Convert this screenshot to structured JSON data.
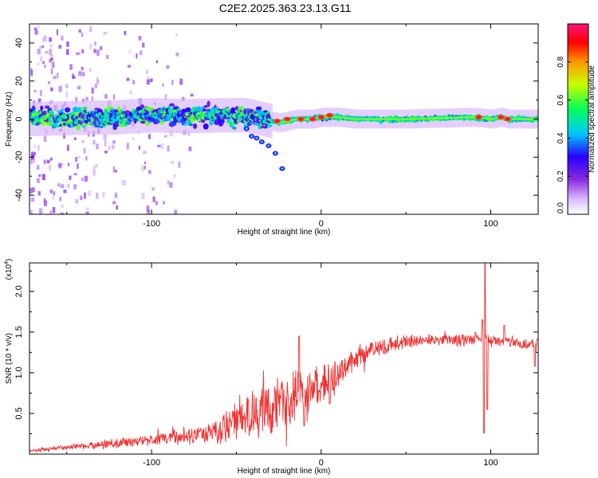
{
  "title": "C2E2.2025.363.23.13.G11",
  "chart_data": [
    {
      "type": "heatmap",
      "name": "spectrogram",
      "xlabel": "Height of straight line (km)",
      "ylabel": "Frequency (Hz)",
      "xlim": [
        -172,
        128
      ],
      "ylim": [
        -50,
        50
      ],
      "x_ticks": [
        -100,
        0,
        100
      ],
      "y_ticks": [
        -40,
        -20,
        0,
        20,
        40
      ],
      "colorbar": {
        "label": "Normalized spectral amplitude",
        "range": [
          0,
          1
        ],
        "ticks": [
          0.0,
          0.2,
          0.4,
          0.6,
          0.8
        ],
        "tick_labels": [
          "0.0",
          "0.2",
          "0.4",
          "0.6",
          "0.8"
        ],
        "colors": [
          "#ffffff",
          "#d8b8ff",
          "#8a2be2",
          "#0000ff",
          "#00ffff",
          "#00ff00",
          "#ffff00",
          "#ff8000",
          "#ff0000",
          "#ff1080"
        ]
      },
      "ridge": {
        "description": "main spectral ridge frequency (Hz) vs height (km)",
        "x": [
          -172,
          -150,
          -120,
          -100,
          -80,
          -60,
          -45,
          -35,
          -25,
          -15,
          -5,
          0,
          10,
          20,
          50,
          90,
          95,
          100,
          106,
          110,
          128
        ],
        "y": [
          0,
          0.5,
          1,
          2,
          1.5,
          2,
          2,
          0,
          -2,
          0,
          0,
          1,
          1,
          0,
          0,
          1,
          0.5,
          0,
          1,
          0,
          0
        ]
      },
      "branch": {
        "x": [
          -44,
          -41,
          -38,
          -35,
          -31,
          -27,
          -23
        ],
        "y": [
          -5,
          -9,
          -10,
          -12,
          -14,
          -18,
          -26
        ]
      },
      "hot_spots": [
        {
          "x": -26,
          "y": -1
        },
        {
          "x": -20,
          "y": 0
        },
        {
          "x": -12,
          "y": 0
        },
        {
          "x": -5,
          "y": 0
        },
        {
          "x": 0,
          "y": 1
        },
        {
          "x": 5,
          "y": 2
        },
        {
          "x": 93,
          "y": 1
        },
        {
          "x": 106,
          "y": 1
        },
        {
          "x": 110,
          "y": 0
        }
      ]
    },
    {
      "type": "line",
      "name": "snr",
      "xlabel": "Height of straight line (km)",
      "ylabel": "SNR (10 * v/v)",
      "y_multiplier": "(x10",
      "y_multiplier_exp": "4",
      "xlim": [
        -172,
        128
      ],
      "ylim": [
        0,
        23500
      ],
      "x_ticks": [
        -100,
        0,
        100
      ],
      "y_ticks": [
        5000,
        10000,
        15000,
        20000
      ],
      "y_tick_labels": [
        "0.5",
        "1.0",
        "1.5",
        "2.0"
      ],
      "color": "#ee3333",
      "trend": {
        "x": [
          -172,
          -160,
          -140,
          -120,
          -100,
          -80,
          -70,
          -60,
          -50,
          -40,
          -30,
          -20,
          -15,
          -10,
          0,
          10,
          20,
          30,
          40,
          60,
          80,
          90,
          94,
          100,
          110,
          120,
          128
        ],
        "y": [
          400,
          700,
          1000,
          1400,
          1800,
          2200,
          2400,
          3000,
          4000,
          5000,
          5500,
          6500,
          7500,
          7500,
          8500,
          9800,
          11500,
          12800,
          13500,
          14000,
          14000,
          14200,
          14200,
          14000,
          13800,
          13500,
          13800
        ]
      },
      "noise": {
        "x": [
          -172,
          -100,
          -70,
          -55,
          -40,
          -25,
          -10,
          0,
          20,
          60,
          128
        ],
        "y": [
          150,
          600,
          900,
          1800,
          2600,
          2800,
          2600,
          2200,
          1200,
          600,
          600
        ]
      },
      "spikes": [
        {
          "x": -13,
          "y": 14500
        },
        {
          "x": -10,
          "y": 3500
        },
        {
          "x": 5,
          "y": 6200
        },
        {
          "x": 96.5,
          "y": 23400
        },
        {
          "x": 95,
          "y": 16500
        },
        {
          "x": 96,
          "y": 2600
        },
        {
          "x": 98,
          "y": 5500
        },
        {
          "x": 108,
          "y": 15800
        },
        {
          "x": 126,
          "y": 10800
        }
      ]
    }
  ]
}
